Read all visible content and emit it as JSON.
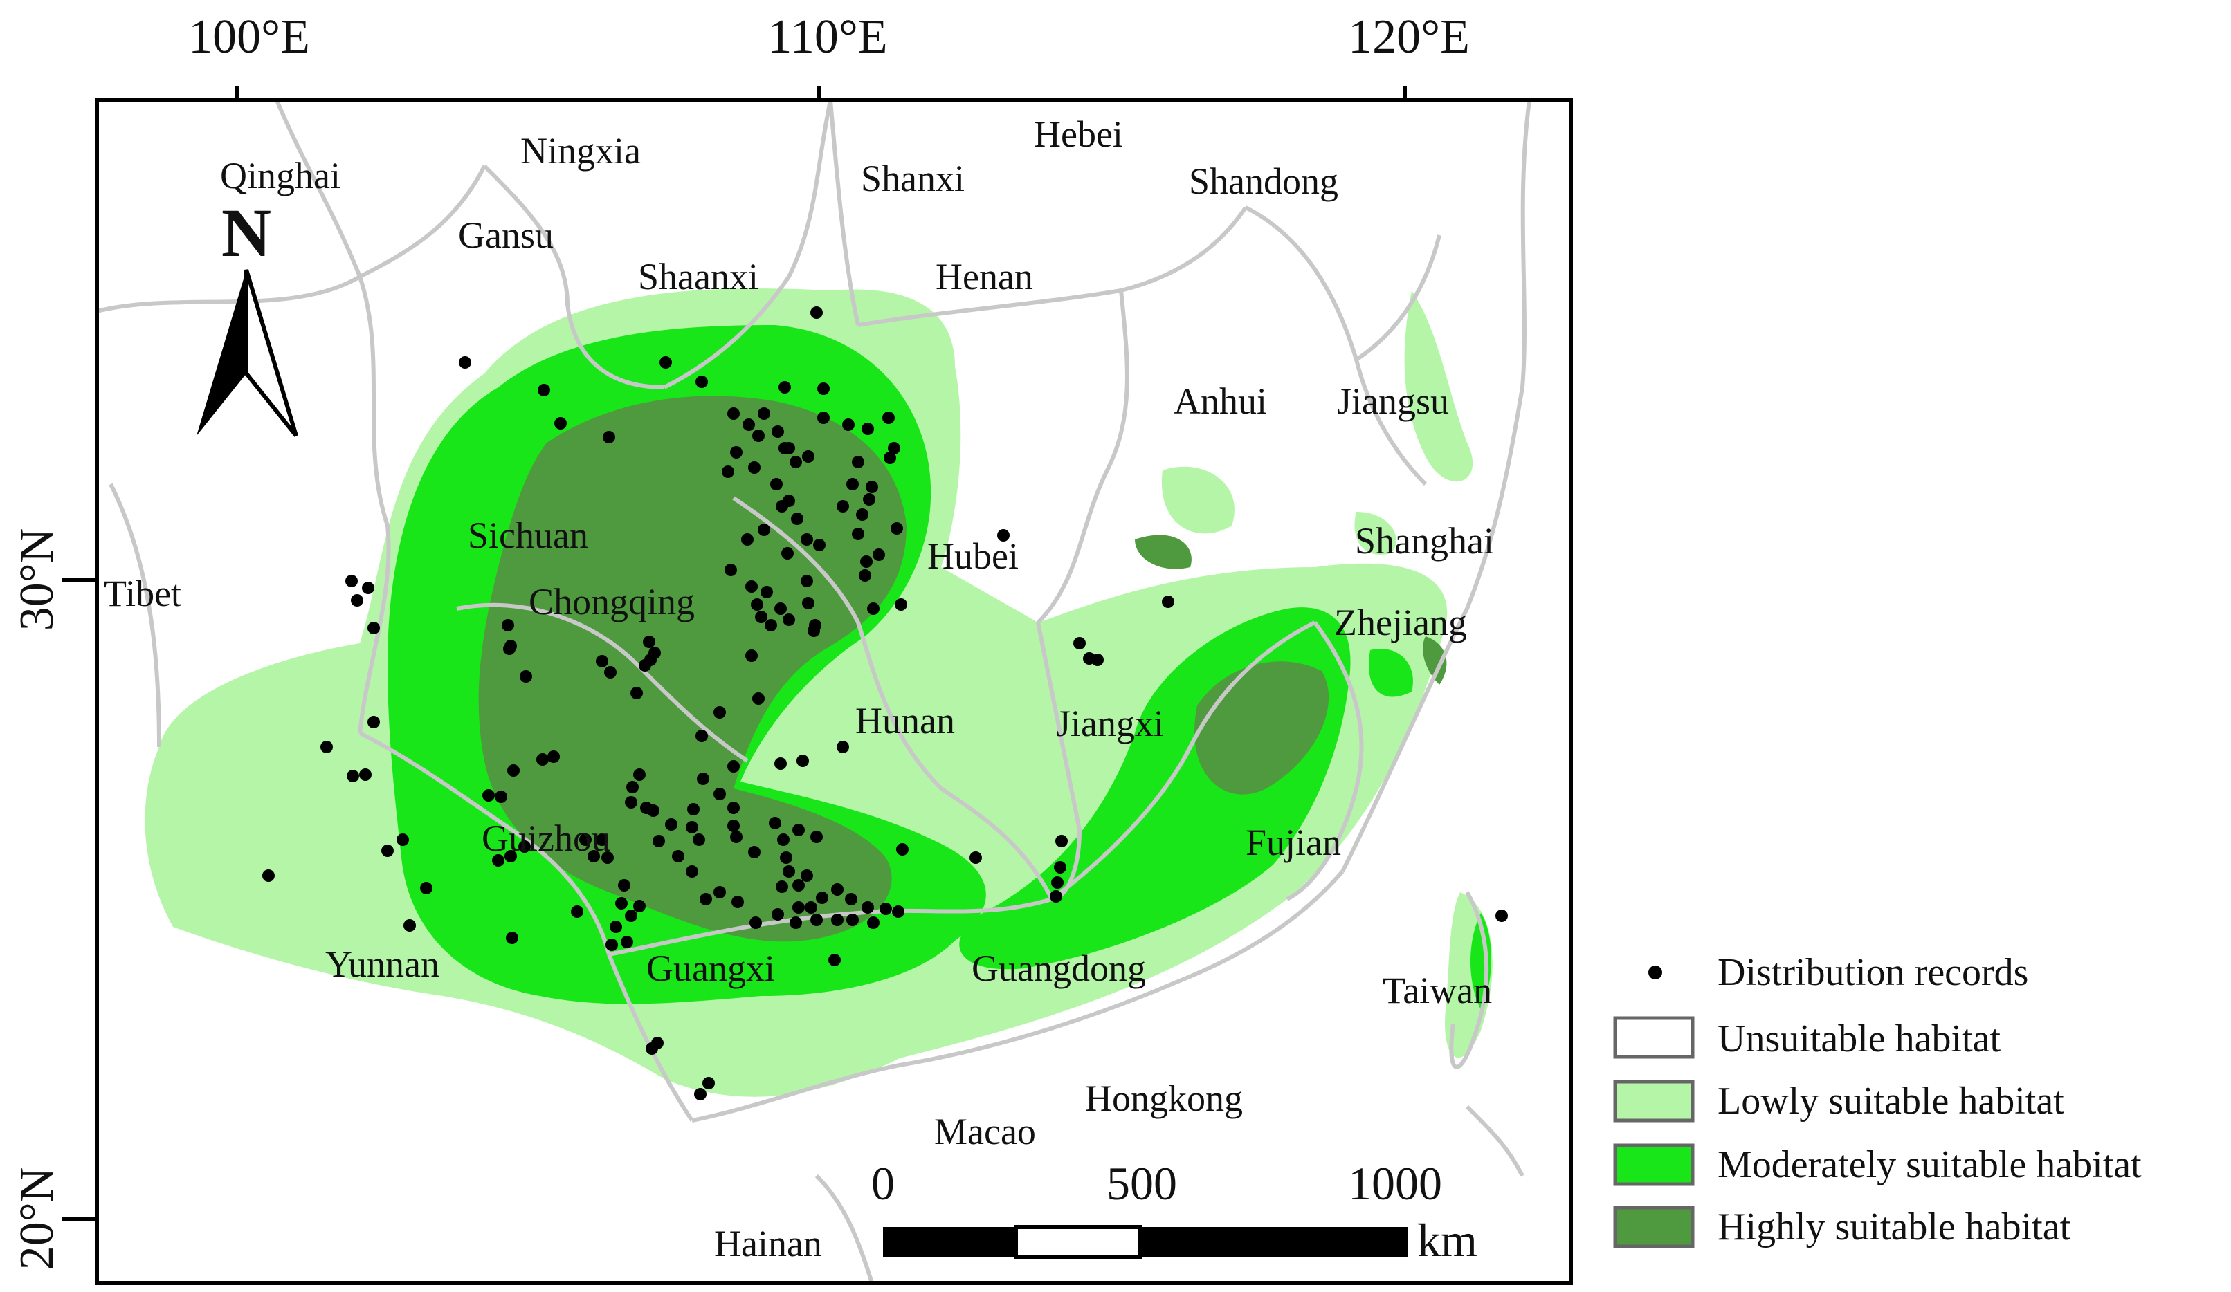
{
  "map": {
    "north_label": "N",
    "longitude_labels": [
      "100°E",
      "110°E",
      "120°E"
    ],
    "latitude_labels": [
      "30°N",
      "20°N"
    ],
    "provinces": [
      "Qinghai",
      "Ningxia",
      "Gansu",
      "Shanxi",
      "Hebei",
      "Shandong",
      "Shaanxi",
      "Henan",
      "Anhui",
      "Jiangsu",
      "Sichuan",
      "Hubei",
      "Shanghai",
      "Tibet",
      "Chongqing",
      "Zhejiang",
      "Hunan",
      "Jiangxi",
      "Guizhou",
      "Fujian",
      "Yunnan",
      "Guangxi",
      "Guangdong",
      "Taiwan",
      "Hongkong",
      "Macao",
      "Hainan"
    ],
    "scale_bar": {
      "ticks": [
        "0",
        "500",
        "1000"
      ],
      "unit": "km"
    }
  },
  "legend": {
    "items": [
      {
        "label": "Distribution records",
        "symbol": "dot",
        "color": "#000000"
      },
      {
        "label": "Unsuitable habitat",
        "symbol": "box",
        "color": "#ffffff"
      },
      {
        "label": "Lowly suitable habitat",
        "symbol": "box",
        "color": "#b5f5a8"
      },
      {
        "label": "Moderately suitable habitat",
        "symbol": "box",
        "color": "#19e619"
      },
      {
        "label": "Highly suitable habitat",
        "symbol": "box",
        "color": "#4f9a3e"
      }
    ]
  },
  "colors": {
    "border_gray": "#c8c8c8",
    "low": "#b5f5a8",
    "moderate": "#19e619",
    "high": "#4f9a3e",
    "frame": "#000000"
  }
}
